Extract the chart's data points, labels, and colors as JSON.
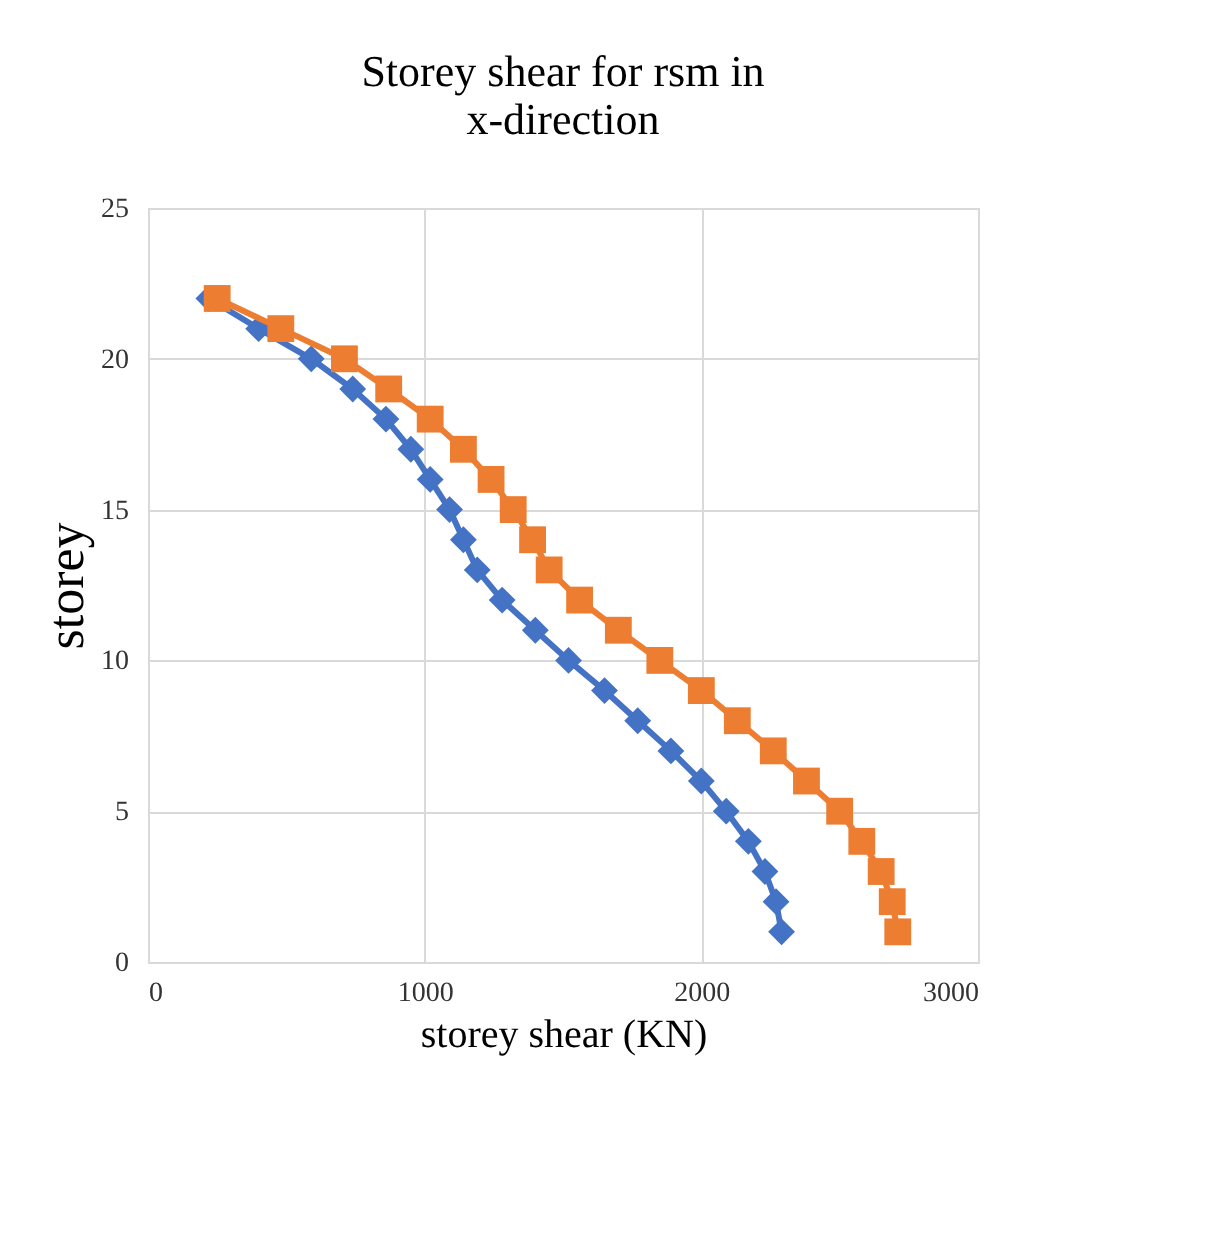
{
  "chart_data": {
    "type": "line",
    "title": "Storey shear for rsm in x-direction",
    "xlabel": "storey shear (KN)",
    "ylabel": "storey",
    "xlim": [
      0,
      3000
    ],
    "xticks": [
      0,
      1000,
      2000,
      3000
    ],
    "ylim": [
      0,
      25
    ],
    "yticks": [
      0,
      5,
      10,
      15,
      20,
      25
    ],
    "grid": true,
    "line_style": "solid",
    "series": [
      {
        "color": "#4472c4",
        "marker": "diamond",
        "x": [
          220,
          400,
          590,
          740,
          860,
          950,
          1020,
          1090,
          1140,
          1190,
          1280,
          1400,
          1520,
          1650,
          1770,
          1890,
          2000,
          2090,
          2170,
          2230,
          2270,
          2290
        ],
        "values": [
          22,
          21,
          20,
          19,
          18,
          17,
          16,
          15,
          14,
          13,
          12,
          11,
          10,
          9,
          8,
          7,
          6,
          5,
          4,
          3,
          2,
          1
        ]
      },
      {
        "color": "#ed7d31",
        "marker": "square",
        "x": [
          250,
          480,
          710,
          870,
          1020,
          1140,
          1240,
          1320,
          1390,
          1450,
          1560,
          1700,
          1850,
          2000,
          2130,
          2260,
          2380,
          2500,
          2580,
          2650,
          2690,
          2710
        ],
        "values": [
          22,
          21,
          20,
          19,
          18,
          17,
          16,
          15,
          14,
          13,
          12,
          11,
          10,
          9,
          8,
          7,
          6,
          5,
          4,
          3,
          2,
          1
        ]
      }
    ]
  }
}
